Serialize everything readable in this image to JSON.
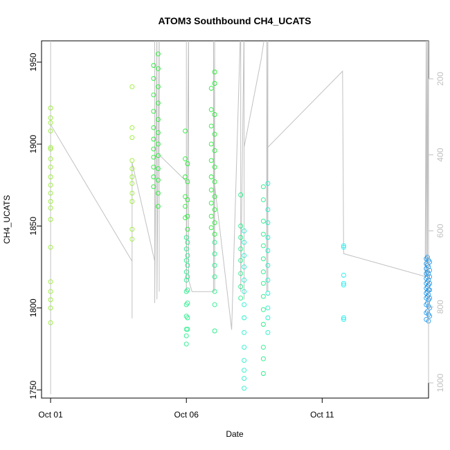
{
  "chart_data": {
    "type": "scatter",
    "title": "ATOM3 Southbound CH4_UCATS",
    "xlabel": "Date",
    "ylabel": "CH4_UCATS",
    "x_ticks": [
      {
        "label": "Oct 01",
        "value": "2017-10-01"
      },
      {
        "label": "Oct 06",
        "value": "2017-10-06"
      },
      {
        "label": "Oct 11",
        "value": "2017-10-11"
      }
    ],
    "y_ticks": [
      "1750",
      "1800",
      "1850",
      "1900",
      "1950"
    ],
    "ylim": [
      1745,
      1963
    ],
    "xlim": [
      "2017-09-30T16:00",
      "2017-10-14T22:00"
    ],
    "secondary_axis": {
      "description": "pressure (inverted), gray line trace",
      "ticks": [
        "200",
        "400",
        "600",
        "800",
        "1000"
      ],
      "ylim": [
        1040,
        100
      ]
    },
    "colors": {
      "yellow_green": "#99ee33",
      "green": "#22ee33",
      "teal_green": "#22ee88",
      "cyan": "#22eeee",
      "blue": "#2299ee",
      "trace": "#c0c0c0"
    },
    "series": [
      {
        "color": "#99ee33",
        "points": [
          [
            "2017-10-01T00:00",
            1922
          ],
          [
            "2017-10-01T00:00",
            1916
          ],
          [
            "2017-10-01T00:00",
            1913
          ],
          [
            "2017-10-01T00:00",
            1908
          ],
          [
            "2017-10-01T00:00",
            1898
          ],
          [
            "2017-10-01T00:00",
            1897
          ],
          [
            "2017-10-01T00:00",
            1891
          ],
          [
            "2017-10-01T00:00",
            1886
          ],
          [
            "2017-10-01T00:00",
            1880
          ],
          [
            "2017-10-01T00:00",
            1875
          ],
          [
            "2017-10-01T00:00",
            1870
          ],
          [
            "2017-10-01T00:00",
            1865
          ],
          [
            "2017-10-01T00:00",
            1861
          ],
          [
            "2017-10-01T00:00",
            1854
          ],
          [
            "2017-10-01T00:00",
            1837
          ],
          [
            "2017-10-01T00:00",
            1816
          ],
          [
            "2017-10-01T00:00",
            1810
          ],
          [
            "2017-10-01T00:00",
            1805
          ],
          [
            "2017-10-01T00:00",
            1800
          ],
          [
            "2017-10-01T00:00",
            1791
          ],
          [
            "2017-10-04T00:00",
            1935
          ],
          [
            "2017-10-04T00:00",
            1910
          ],
          [
            "2017-10-04T00:00",
            1904
          ],
          [
            "2017-10-04T00:00",
            1890
          ],
          [
            "2017-10-04T00:00",
            1885
          ],
          [
            "2017-10-04T00:00",
            1880
          ],
          [
            "2017-10-04T00:00",
            1876
          ],
          [
            "2017-10-04T00:00",
            1870
          ],
          [
            "2017-10-04T00:00",
            1865
          ],
          [
            "2017-10-04T00:00",
            1848
          ],
          [
            "2017-10-04T00:00",
            1842
          ]
        ]
      },
      {
        "color": "#22ee33",
        "points": [
          [
            "2017-10-04T19:00",
            1948
          ],
          [
            "2017-10-04T19:00",
            1940
          ],
          [
            "2017-10-04T19:00",
            1930
          ],
          [
            "2017-10-04T19:00",
            1920
          ],
          [
            "2017-10-04T19:00",
            1910
          ],
          [
            "2017-10-04T19:00",
            1903
          ],
          [
            "2017-10-04T19:00",
            1897
          ],
          [
            "2017-10-04T19:00",
            1892
          ],
          [
            "2017-10-04T19:00",
            1886
          ],
          [
            "2017-10-04T19:00",
            1880
          ],
          [
            "2017-10-04T19:00",
            1874
          ],
          [
            "2017-10-04T23:00",
            1955
          ],
          [
            "2017-10-04T23:00",
            1946
          ],
          [
            "2017-10-04T23:00",
            1935
          ],
          [
            "2017-10-04T23:00",
            1925
          ],
          [
            "2017-10-04T23:00",
            1915
          ],
          [
            "2017-10-04T23:00",
            1907
          ],
          [
            "2017-10-04T23:00",
            1900
          ],
          [
            "2017-10-04T23:00",
            1893
          ],
          [
            "2017-10-04T23:00",
            1885
          ],
          [
            "2017-10-04T23:00",
            1878
          ],
          [
            "2017-10-04T23:00",
            1870
          ],
          [
            "2017-10-04T23:00",
            1862
          ],
          [
            "2017-10-05T23:00",
            1908
          ],
          [
            "2017-10-05T23:00",
            1891
          ],
          [
            "2017-10-05T23:00",
            1880
          ],
          [
            "2017-10-05T23:00",
            1868
          ],
          [
            "2017-10-05T23:00",
            1862
          ],
          [
            "2017-10-05T23:00",
            1855
          ],
          [
            "2017-10-06T01:00",
            1888
          ],
          [
            "2017-10-06T01:00",
            1877
          ],
          [
            "2017-10-06T01:00",
            1866
          ],
          [
            "2017-10-06T01:00",
            1856
          ],
          [
            "2017-10-06T01:00",
            1848
          ],
          [
            "2017-10-06T22:00",
            1921
          ],
          [
            "2017-10-06T22:00",
            1911
          ],
          [
            "2017-10-06T22:00",
            1900
          ],
          [
            "2017-10-06T22:00",
            1890
          ],
          [
            "2017-10-06T22:00",
            1880
          ],
          [
            "2017-10-06T22:00",
            1872
          ],
          [
            "2017-10-06T22:00",
            1864
          ],
          [
            "2017-10-06T22:00",
            1856
          ],
          [
            "2017-10-06T22:00",
            1849
          ],
          [
            "2017-10-06T22:00",
            1934
          ],
          [
            "2017-10-07T01:00",
            1944
          ],
          [
            "2017-10-07T01:00",
            1937
          ],
          [
            "2017-10-07T01:00",
            1918
          ],
          [
            "2017-10-07T01:00",
            1906
          ],
          [
            "2017-10-07T01:00",
            1896
          ],
          [
            "2017-10-07T01:00",
            1886
          ],
          [
            "2017-10-07T01:00",
            1877
          ],
          [
            "2017-10-07T01:00",
            1868
          ],
          [
            "2017-10-07T01:00",
            1860
          ],
          [
            "2017-10-07T01:00",
            1852
          ],
          [
            "2017-10-07T01:00",
            1845
          ]
        ]
      },
      {
        "color": "#22ee88",
        "points": [
          [
            "2017-10-06T00:00",
            1843
          ],
          [
            "2017-10-06T00:00",
            1836
          ],
          [
            "2017-10-06T00:00",
            1829
          ],
          [
            "2017-10-06T00:00",
            1822
          ],
          [
            "2017-10-06T00:00",
            1817
          ],
          [
            "2017-10-06T00:00",
            1810
          ],
          [
            "2017-10-06T00:00",
            1802
          ],
          [
            "2017-10-06T00:00",
            1795
          ],
          [
            "2017-10-06T00:00",
            1787
          ],
          [
            "2017-10-06T00:00",
            1783
          ],
          [
            "2017-10-06T00:00",
            1778
          ],
          [
            "2017-10-06T01:00",
            1840
          ],
          [
            "2017-10-06T01:00",
            1832
          ],
          [
            "2017-10-06T01:00",
            1826
          ],
          [
            "2017-10-06T01:00",
            1819
          ],
          [
            "2017-10-06T01:00",
            1811
          ],
          [
            "2017-10-06T01:00",
            1803
          ],
          [
            "2017-10-06T01:00",
            1794
          ],
          [
            "2017-10-06T01:00",
            1787
          ],
          [
            "2017-10-07T01:00",
            1840
          ],
          [
            "2017-10-07T01:00",
            1833
          ],
          [
            "2017-10-07T01:00",
            1826
          ],
          [
            "2017-10-07T01:00",
            1819
          ],
          [
            "2017-10-07T01:00",
            1810
          ],
          [
            "2017-10-07T01:00",
            1802
          ],
          [
            "2017-10-07T01:00",
            1786
          ],
          [
            "2017-10-08T00:00",
            1869
          ],
          [
            "2017-10-08T00:00",
            1850
          ],
          [
            "2017-10-08T00:00",
            1843
          ],
          [
            "2017-10-08T00:00",
            1836
          ],
          [
            "2017-10-08T00:00",
            1829
          ],
          [
            "2017-10-08T00:00",
            1821
          ],
          [
            "2017-10-08T00:00",
            1813
          ],
          [
            "2017-10-08T00:00",
            1806
          ],
          [
            "2017-10-08T20:00",
            1874
          ],
          [
            "2017-10-08T20:00",
            1866
          ],
          [
            "2017-10-08T20:00",
            1853
          ],
          [
            "2017-10-08T20:00",
            1845
          ],
          [
            "2017-10-08T20:00",
            1838
          ],
          [
            "2017-10-08T20:00",
            1830
          ],
          [
            "2017-10-08T20:00",
            1822
          ],
          [
            "2017-10-08T20:00",
            1815
          ],
          [
            "2017-10-08T20:00",
            1807
          ],
          [
            "2017-10-08T20:00",
            1799
          ],
          [
            "2017-10-08T20:00",
            1790
          ],
          [
            "2017-10-08T20:00",
            1776
          ],
          [
            "2017-10-08T20:00",
            1769
          ],
          [
            "2017-10-08T20:00",
            1760
          ]
        ]
      },
      {
        "color": "#22eecc",
        "points": [
          [
            "2017-10-08T03:00",
            1847
          ],
          [
            "2017-10-08T03:00",
            1840
          ],
          [
            "2017-10-08T03:00",
            1832
          ],
          [
            "2017-10-08T03:00",
            1825
          ],
          [
            "2017-10-08T03:00",
            1817
          ],
          [
            "2017-10-08T03:00",
            1810
          ],
          [
            "2017-10-08T03:00",
            1802
          ],
          [
            "2017-10-08T03:00",
            1794
          ],
          [
            "2017-10-08T03:00",
            1785
          ],
          [
            "2017-10-08T03:00",
            1776
          ],
          [
            "2017-10-08T03:00",
            1768
          ],
          [
            "2017-10-08T03:00",
            1762
          ],
          [
            "2017-10-08T03:00",
            1757
          ],
          [
            "2017-10-08T03:00",
            1751
          ],
          [
            "2017-10-09T00:00",
            1876
          ],
          [
            "2017-10-09T00:00",
            1860
          ],
          [
            "2017-10-09T00:00",
            1852
          ],
          [
            "2017-10-09T00:00",
            1843
          ],
          [
            "2017-10-09T00:00",
            1835
          ],
          [
            "2017-10-09T00:00",
            1826
          ],
          [
            "2017-10-09T00:00",
            1817
          ],
          [
            "2017-10-09T00:00",
            1809
          ],
          [
            "2017-10-09T00:00",
            1800
          ],
          [
            "2017-10-09T00:00",
            1794
          ],
          [
            "2017-10-09T00:00",
            1785
          ]
        ]
      },
      {
        "color": "#22eeee",
        "points": [
          [
            "2017-10-11T19:00",
            1838
          ],
          [
            "2017-10-11T19:00",
            1837
          ],
          [
            "2017-10-11T19:00",
            1820
          ],
          [
            "2017-10-11T19:00",
            1815
          ],
          [
            "2017-10-11T19:00",
            1814
          ],
          [
            "2017-10-11T19:00",
            1794
          ],
          [
            "2017-10-11T19:00",
            1793
          ]
        ]
      },
      {
        "color": "#2299ee",
        "points": [
          [
            "2017-10-14T20:00",
            1830
          ],
          [
            "2017-10-14T20:00",
            1827
          ],
          [
            "2017-10-14T20:00",
            1824
          ],
          [
            "2017-10-14T20:00",
            1821
          ],
          [
            "2017-10-14T20:00",
            1818
          ],
          [
            "2017-10-14T20:00",
            1815
          ],
          [
            "2017-10-14T20:00",
            1812
          ],
          [
            "2017-10-14T20:00",
            1809
          ],
          [
            "2017-10-14T20:00",
            1806
          ],
          [
            "2017-10-14T20:00",
            1802
          ],
          [
            "2017-10-14T20:00",
            1797
          ],
          [
            "2017-10-14T20:00",
            1793
          ],
          [
            "2017-10-14T21:00",
            1831
          ],
          [
            "2017-10-14T21:00",
            1826
          ],
          [
            "2017-10-14T21:00",
            1822
          ],
          [
            "2017-10-14T21:00",
            1819
          ],
          [
            "2017-10-14T21:00",
            1816
          ],
          [
            "2017-10-14T21:00",
            1813
          ],
          [
            "2017-10-14T21:00",
            1810
          ],
          [
            "2017-10-14T21:00",
            1807
          ],
          [
            "2017-10-14T21:00",
            1803
          ],
          [
            "2017-10-14T21:00",
            1798
          ],
          [
            "2017-10-14T22:00",
            1829
          ],
          [
            "2017-10-14T22:00",
            1825
          ],
          [
            "2017-10-14T22:00",
            1821
          ],
          [
            "2017-10-14T22:00",
            1817
          ],
          [
            "2017-10-14T22:00",
            1814
          ],
          [
            "2017-10-14T22:00",
            1811
          ],
          [
            "2017-10-14T22:00",
            1808
          ],
          [
            "2017-10-14T22:00",
            1805
          ],
          [
            "2017-10-14T22:00",
            1801
          ],
          [
            "2017-10-14T22:00",
            1796
          ],
          [
            "2017-10-14T22:00",
            1792
          ],
          [
            "2017-10-14T23:00",
            1828
          ],
          [
            "2017-10-14T23:00",
            1823
          ],
          [
            "2017-10-14T23:00",
            1819
          ],
          [
            "2017-10-14T23:00",
            1815
          ],
          [
            "2017-10-14T23:00",
            1811
          ],
          [
            "2017-10-14T23:00",
            1806
          ],
          [
            "2017-10-14T23:00",
            1800
          ],
          [
            "2017-10-14T23:00",
            1795
          ]
        ]
      }
    ],
    "pressure_trace": [
      [
        "2017-10-01T00:00",
        50
      ],
      [
        "2017-10-01T00:00",
        1030
      ],
      [
        "2017-10-01T00:00",
        320
      ],
      [
        "2017-10-04T00:00",
        680
      ],
      [
        "2017-10-04T00:00",
        830
      ],
      [
        "2017-10-04T00:00",
        420
      ],
      [
        "2017-10-04T20:00",
        680
      ],
      [
        "2017-10-04T20:00",
        50
      ],
      [
        "2017-10-04T20:00",
        790
      ],
      [
        "2017-10-04T22:00",
        50
      ],
      [
        "2017-10-04T22:00",
        780
      ],
      [
        "2017-10-05T00:00",
        50
      ],
      [
        "2017-10-05T00:00",
        760
      ],
      [
        "2017-10-05T00:00",
        400
      ],
      [
        "2017-10-06T00:00",
        470
      ],
      [
        "2017-10-06T00:00",
        50
      ],
      [
        "2017-10-06T00:00",
        760
      ],
      [
        "2017-10-06T02:00",
        50
      ],
      [
        "2017-10-06T02:00",
        730
      ],
      [
        "2017-10-06T05:00",
        760
      ],
      [
        "2017-10-07T00:00",
        760
      ],
      [
        "2017-10-07T00:00",
        50
      ],
      [
        "2017-10-07T01:00",
        760
      ],
      [
        "2017-10-07T01:00",
        50
      ],
      [
        "2017-10-07T01:00",
        480
      ],
      [
        "2017-10-07T16:00",
        860
      ],
      [
        "2017-10-08T00:00",
        50
      ],
      [
        "2017-10-08T00:00",
        760
      ],
      [
        "2017-10-08T03:00",
        50
      ],
      [
        "2017-10-08T03:00",
        780
      ],
      [
        "2017-10-08T03:00",
        380
      ],
      [
        "2017-10-08T18:00",
        150
      ],
      [
        "2017-10-08T23:00",
        50
      ],
      [
        "2017-10-08T23:00",
        760
      ],
      [
        "2017-10-09T00:00",
        50
      ],
      [
        "2017-10-09T00:00",
        760
      ],
      [
        "2017-10-09T00:00",
        380
      ],
      [
        "2017-10-11T18:00",
        180
      ],
      [
        "2017-10-11T19:00",
        660
      ],
      [
        "2017-10-14T19:00",
        720
      ],
      [
        "2017-10-14T20:00",
        50
      ],
      [
        "2017-10-14T20:00",
        720
      ],
      [
        "2017-10-14T21:00",
        50
      ],
      [
        "2017-10-14T21:00",
        680
      ],
      [
        "2017-10-14T22:00",
        50
      ],
      [
        "2017-10-14T22:00",
        720
      ],
      [
        "2017-10-14T22:00",
        420
      ]
    ],
    "grid": false,
    "legend": "none"
  }
}
